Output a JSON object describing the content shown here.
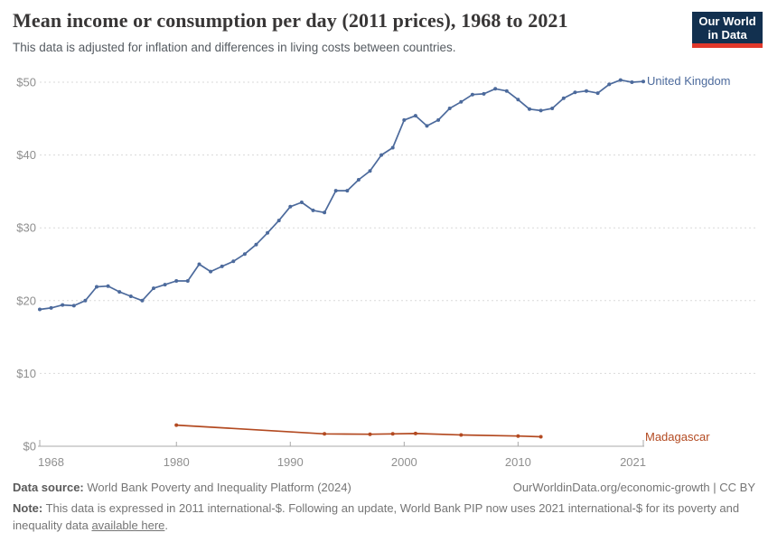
{
  "header": {
    "title": "Mean income or consumption per day (2011 prices), 1968 to 2021",
    "subtitle": "This data is adjusted for inflation and differences in living costs between countries."
  },
  "logo": {
    "line1": "Our World",
    "line2": "in Data",
    "bg_color": "#12304F",
    "accent_color": "#E0382B"
  },
  "chart_data": {
    "type": "line",
    "title": "Mean income or consumption per day (2011 prices), 1968 to 2021",
    "xlabel": "",
    "ylabel": "",
    "xlim": [
      1968,
      2021
    ],
    "ylim": [
      0,
      50
    ],
    "grid": "horizontal-dashed",
    "legend_position": "right-end-of-line-labels",
    "x_ticks": [
      {
        "value": 1968,
        "label": "1968"
      },
      {
        "value": 1980,
        "label": "1980"
      },
      {
        "value": 1990,
        "label": "1990"
      },
      {
        "value": 2000,
        "label": "2000"
      },
      {
        "value": 2010,
        "label": "2010"
      },
      {
        "value": 2021,
        "label": "2021"
      }
    ],
    "y_ticks": [
      {
        "value": 0,
        "label": "$0"
      },
      {
        "value": 10,
        "label": "$10"
      },
      {
        "value": 20,
        "label": "$20"
      },
      {
        "value": 30,
        "label": "$30"
      },
      {
        "value": 40,
        "label": "$40"
      },
      {
        "value": 50,
        "label": "$50"
      }
    ],
    "series": [
      {
        "name": "United Kingdom",
        "color": "#4C6A9C",
        "points": [
          [
            1968,
            18.8
          ],
          [
            1969,
            19.0
          ],
          [
            1970,
            19.4
          ],
          [
            1971,
            19.3
          ],
          [
            1972,
            20.0
          ],
          [
            1973,
            21.9
          ],
          [
            1974,
            22.0
          ],
          [
            1975,
            21.2
          ],
          [
            1976,
            20.6
          ],
          [
            1977,
            20.0
          ],
          [
            1978,
            21.7
          ],
          [
            1979,
            22.2
          ],
          [
            1980,
            22.7
          ],
          [
            1981,
            22.7
          ],
          [
            1982,
            25.0
          ],
          [
            1983,
            24.0
          ],
          [
            1984,
            24.7
          ],
          [
            1985,
            25.4
          ],
          [
            1986,
            26.4
          ],
          [
            1987,
            27.7
          ],
          [
            1988,
            29.3
          ],
          [
            1989,
            31.0
          ],
          [
            1990,
            32.9
          ],
          [
            1991,
            33.5
          ],
          [
            1992,
            32.4
          ],
          [
            1993,
            32.1
          ],
          [
            1994,
            35.1
          ],
          [
            1995,
            35.1
          ],
          [
            1996,
            36.6
          ],
          [
            1997,
            37.8
          ],
          [
            1998,
            40.0
          ],
          [
            1999,
            41.0
          ],
          [
            2000,
            44.8
          ],
          [
            2001,
            45.4
          ],
          [
            2002,
            44.0
          ],
          [
            2003,
            44.8
          ],
          [
            2004,
            46.4
          ],
          [
            2005,
            47.3
          ],
          [
            2006,
            48.3
          ],
          [
            2007,
            48.4
          ],
          [
            2008,
            49.1
          ],
          [
            2009,
            48.8
          ],
          [
            2010,
            47.6
          ],
          [
            2011,
            46.3
          ],
          [
            2012,
            46.1
          ],
          [
            2013,
            46.4
          ],
          [
            2014,
            47.8
          ],
          [
            2015,
            48.6
          ],
          [
            2016,
            48.8
          ],
          [
            2017,
            48.5
          ],
          [
            2018,
            49.7
          ],
          [
            2019,
            50.3
          ],
          [
            2020,
            50.0
          ],
          [
            2021,
            50.1
          ]
        ]
      },
      {
        "name": "Madagascar",
        "color": "#B34A21",
        "points": [
          [
            1980,
            2.9
          ],
          [
            1993,
            1.7
          ],
          [
            1997,
            1.65
          ],
          [
            1999,
            1.7
          ],
          [
            2001,
            1.75
          ],
          [
            2005,
            1.55
          ],
          [
            2010,
            1.4
          ],
          [
            2012,
            1.3
          ]
        ]
      }
    ]
  },
  "footer": {
    "datasource_label": "Data source:",
    "datasource_text": "World Bank Poverty and Inequality Platform (2024)",
    "credit": "OurWorldinData.org/economic-growth | CC BY",
    "note_label": "Note:",
    "note_text": "This data is expressed in 2011 international-$. Following an update, World Bank PIP now uses 2021 international-$ for its poverty and inequality data ",
    "note_link": "available here",
    "note_suffix": "."
  }
}
